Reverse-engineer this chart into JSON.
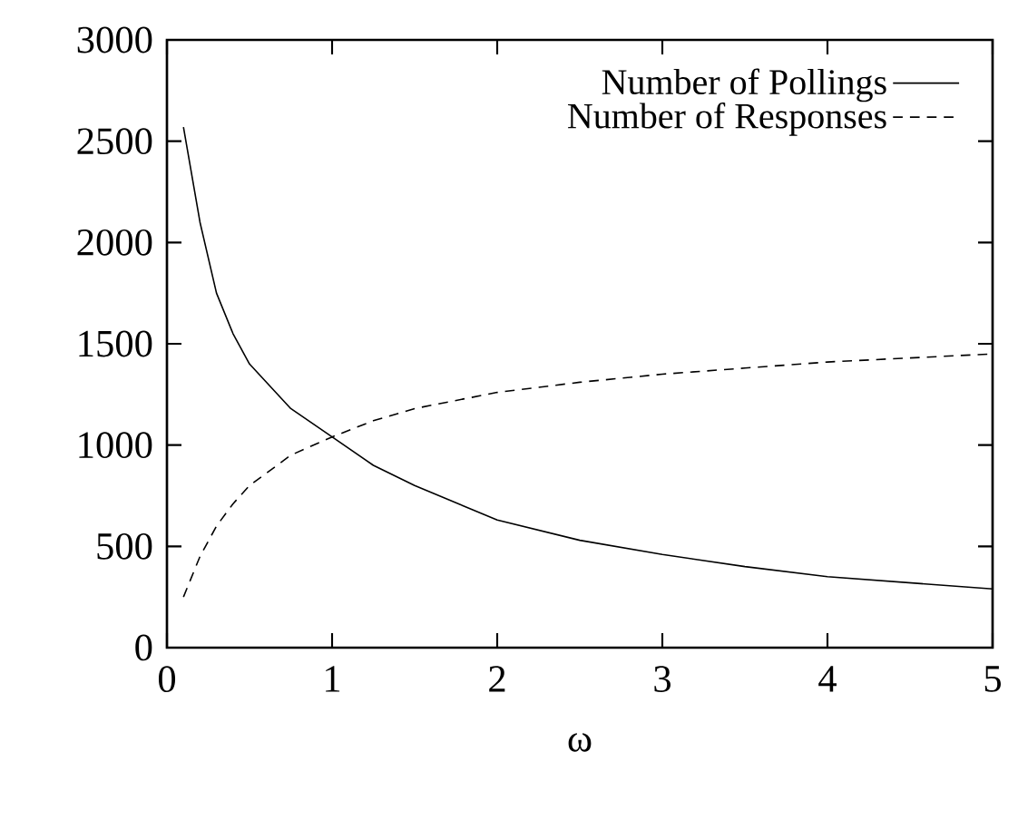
{
  "chart_data": {
    "type": "line",
    "xlabel": "ω",
    "xlim": [
      0,
      5
    ],
    "ylim": [
      0,
      3000
    ],
    "xticks": [
      0,
      1,
      2,
      3,
      4,
      5
    ],
    "yticks": [
      0,
      500,
      1000,
      1500,
      2000,
      2500,
      3000
    ],
    "legend": "top right",
    "grid": false,
    "series": [
      {
        "name": "Number of Pollings",
        "color": "#000000",
        "line_style": "solid",
        "x": [
          0.1,
          0.2,
          0.3,
          0.4,
          0.5,
          0.75,
          1,
          1.25,
          1.5,
          2,
          2.5,
          3,
          3.5,
          4,
          4.5,
          5
        ],
        "values": [
          2570,
          2100,
          1750,
          1550,
          1400,
          1180,
          1040,
          900,
          800,
          630,
          530,
          460,
          400,
          350,
          320,
          290
        ]
      },
      {
        "name": "Number of Responses",
        "color": "#000000",
        "line_style": "dashed",
        "x": [
          0.1,
          0.2,
          0.3,
          0.4,
          0.5,
          0.75,
          1,
          1.25,
          1.5,
          2,
          2.5,
          3,
          3.5,
          4,
          4.5,
          5
        ],
        "values": [
          250,
          450,
          600,
          710,
          800,
          950,
          1040,
          1120,
          1180,
          1260,
          1310,
          1350,
          1380,
          1410,
          1430,
          1450
        ]
      }
    ]
  }
}
